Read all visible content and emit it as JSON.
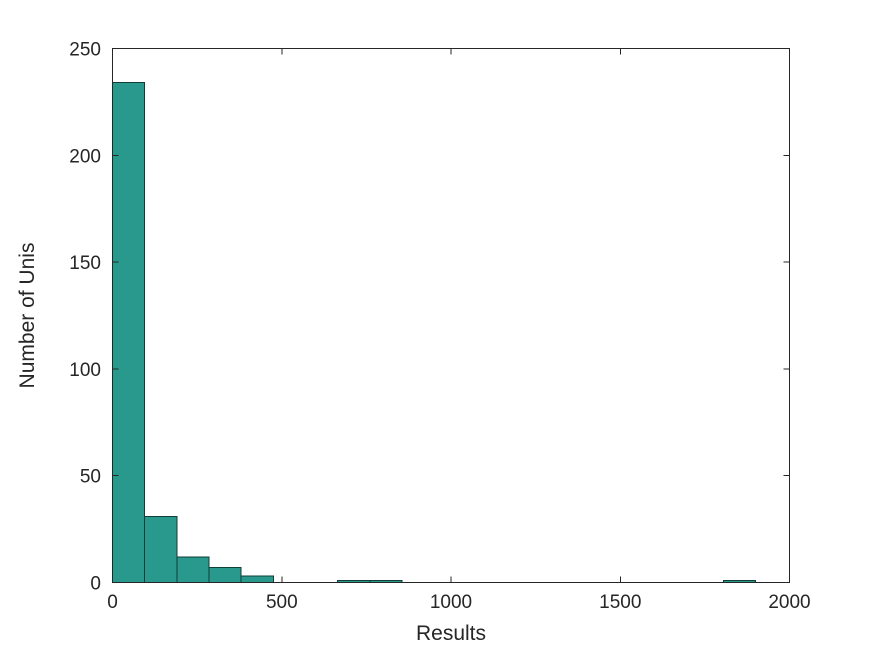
{
  "chart_data": {
    "type": "bar",
    "subtype": "histogram",
    "title": "",
    "xlabel": "Results",
    "ylabel": "Number of Unis",
    "xlim": [
      0,
      2000
    ],
    "ylim": [
      0,
      250
    ],
    "x_ticks": [
      0,
      500,
      1000,
      1500,
      2000
    ],
    "y_ticks": [
      0,
      50,
      100,
      150,
      200,
      250
    ],
    "grid": false,
    "legend": null,
    "bins": {
      "start": 0,
      "width": 95,
      "counts": [
        234,
        31,
        12,
        7,
        3,
        0,
        0,
        1,
        1,
        0,
        0,
        0,
        0,
        0,
        0,
        0,
        0,
        0,
        0,
        1
      ]
    },
    "nonzero_bins": [
      {
        "range": "0-95",
        "count": 234
      },
      {
        "range": "95-190",
        "count": 31
      },
      {
        "range": "190-285",
        "count": 12
      },
      {
        "range": "285-380",
        "count": 7
      },
      {
        "range": "380-475",
        "count": 3
      },
      {
        "range": "665-760",
        "count": 1
      },
      {
        "range": "760-855",
        "count": 1
      },
      {
        "range": "1805-1900",
        "count": 1
      }
    ],
    "colors": {
      "bar_fill": "#29998d",
      "bar_edge": "#0f3d38",
      "axis": "#262626",
      "text": "#262626",
      "background": "#ffffff"
    }
  }
}
